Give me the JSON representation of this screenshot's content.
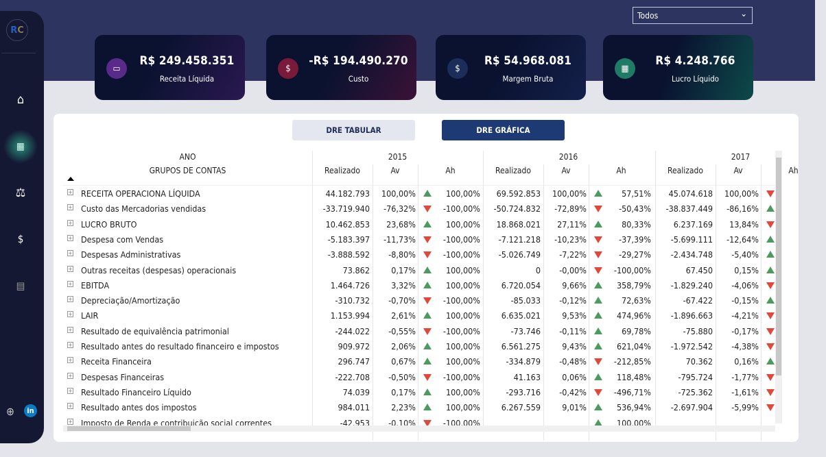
{
  "sidebar": {
    "logo": "RC",
    "items": [
      {
        "name": "home",
        "icon": "home-icon"
      },
      {
        "name": "dre-table",
        "icon": "grid-icon",
        "active": true
      },
      {
        "name": "balance",
        "icon": "scale-icon"
      },
      {
        "name": "cash",
        "icon": "hand-money-icon"
      },
      {
        "name": "calculator",
        "icon": "calculator-icon"
      }
    ],
    "footer": [
      "globe-icon",
      "linkedin-icon"
    ],
    "linkedin": "in"
  },
  "filter": {
    "value": "Todos"
  },
  "cards": [
    {
      "value": "R$ 249.458.351",
      "label": "Receita Líquida",
      "icon_color": "#5a2a8a"
    },
    {
      "value": "-R$ 194.490.270",
      "label": "Custo",
      "icon_color": "#7a1a3a"
    },
    {
      "value": "R$ 54.968.081",
      "label": "Margem Bruta",
      "icon_color": "#1c2d5a"
    },
    {
      "value": "R$ 4.248.766",
      "label": "Lucro Líquido",
      "icon_color": "#1f7a66"
    }
  ],
  "buttons": {
    "tabular": "DRE TABULAR",
    "grafica": "DRE GRÁFICA"
  },
  "table": {
    "header_ano": "ANO",
    "header_grupos": "GRUPOS DE CONTAS",
    "years": [
      "2015",
      "2016",
      "2017"
    ],
    "sub": [
      "Realizado",
      "Av",
      "Ah"
    ],
    "rows": [
      {
        "label": "RECEITA OPERACIONA LÍQUIDA",
        "y2015": [
          "44.182.793",
          "100,00%",
          "up",
          "100,00%"
        ],
        "y2016": [
          "69.592.853",
          "100,00%",
          "up",
          "57,51%"
        ],
        "y2017": [
          "45.074.618",
          "100,00%",
          "down",
          ""
        ]
      },
      {
        "label": "Custo das Mercadorias vendidas",
        "y2015": [
          "-33.719.940",
          "-76,32%",
          "down",
          "-100,00%"
        ],
        "y2016": [
          "-50.724.832",
          "-72,89%",
          "down",
          "-50,43%"
        ],
        "y2017": [
          "-38.837.449",
          "-86,16%",
          "up",
          ""
        ]
      },
      {
        "label": "LUCRO BRUTO",
        "y2015": [
          "10.462.853",
          "23,68%",
          "up",
          "100,00%"
        ],
        "y2016": [
          "18.868.021",
          "27,11%",
          "up",
          "80,33%"
        ],
        "y2017": [
          "6.237.169",
          "13,84%",
          "down",
          ""
        ]
      },
      {
        "label": "Despesa com Vendas",
        "y2015": [
          "-5.183.397",
          "-11,73%",
          "down",
          "-100,00%"
        ],
        "y2016": [
          "-7.121.218",
          "-10,23%",
          "down",
          "-37,39%"
        ],
        "y2017": [
          "-5.699.111",
          "-12,64%",
          "up",
          ""
        ]
      },
      {
        "label": "Despesas Administrativas",
        "y2015": [
          "-3.888.592",
          "-8,80%",
          "down",
          "-100,00%"
        ],
        "y2016": [
          "-5.026.749",
          "-7,22%",
          "down",
          "-29,27%"
        ],
        "y2017": [
          "-2.434.748",
          "-5,40%",
          "up",
          ""
        ]
      },
      {
        "label": "Outras receitas (despesas) operacionais",
        "y2015": [
          "73.862",
          "0,17%",
          "up",
          "100,00%"
        ],
        "y2016": [
          "0",
          "-0,00%",
          "down",
          "-100,00%"
        ],
        "y2017": [
          "67.450",
          "0,15%",
          "up",
          ""
        ]
      },
      {
        "label": "EBITDA",
        "y2015": [
          "1.464.726",
          "3,32%",
          "up",
          "100,00%"
        ],
        "y2016": [
          "6.720.054",
          "9,66%",
          "up",
          "358,79%"
        ],
        "y2017": [
          "-1.829.240",
          "-4,06%",
          "down",
          ""
        ]
      },
      {
        "label": "Depreciação/Amortização",
        "y2015": [
          "-310.732",
          "-0,70%",
          "down",
          "-100,00%"
        ],
        "y2016": [
          "-85.033",
          "-0,12%",
          "up",
          "72,63%"
        ],
        "y2017": [
          "-67.422",
          "-0,15%",
          "up",
          ""
        ]
      },
      {
        "label": "LAIR",
        "y2015": [
          "1.153.994",
          "2,61%",
          "up",
          "100,00%"
        ],
        "y2016": [
          "6.635.021",
          "9,53%",
          "up",
          "474,96%"
        ],
        "y2017": [
          "-1.896.663",
          "-4,21%",
          "down",
          ""
        ]
      },
      {
        "label": "Resultado de equivalência patrimonial",
        "y2015": [
          "-244.022",
          "-0,55%",
          "down",
          "-100,00%"
        ],
        "y2016": [
          "-73.746",
          "-0,11%",
          "up",
          "69,78%"
        ],
        "y2017": [
          "-75.880",
          "-0,17%",
          "down",
          ""
        ]
      },
      {
        "label": "Resultado antes do resultado financeiro e impostos",
        "y2015": [
          "909.972",
          "2,06%",
          "up",
          "100,00%"
        ],
        "y2016": [
          "6.561.275",
          "9,43%",
          "up",
          "621,04%"
        ],
        "y2017": [
          "-1.972.542",
          "-4,38%",
          "down",
          ""
        ]
      },
      {
        "label": "Receita Financeira",
        "y2015": [
          "296.747",
          "0,67%",
          "up",
          "100,00%"
        ],
        "y2016": [
          "-334.879",
          "-0,48%",
          "down",
          "-212,85%"
        ],
        "y2017": [
          "70.362",
          "0,16%",
          "up",
          ""
        ]
      },
      {
        "label": "Despesas Financeiras",
        "y2015": [
          "-222.708",
          "-0,50%",
          "down",
          "-100,00%"
        ],
        "y2016": [
          "41.163",
          "0,06%",
          "up",
          "118,48%"
        ],
        "y2017": [
          "-795.724",
          "-1,77%",
          "down",
          ""
        ]
      },
      {
        "label": "Resultado Financeiro Líquido",
        "y2015": [
          "74.039",
          "0,17%",
          "up",
          "100,00%"
        ],
        "y2016": [
          "-293.716",
          "-0,42%",
          "down",
          "-496,71%"
        ],
        "y2017": [
          "-725.362",
          "-1,61%",
          "down",
          ""
        ]
      },
      {
        "label": "Resultado antes dos impostos",
        "y2015": [
          "984.011",
          "2,23%",
          "up",
          "100,00%"
        ],
        "y2016": [
          "6.267.559",
          "9,01%",
          "up",
          "536,94%"
        ],
        "y2017": [
          "-2.697.904",
          "-5,99%",
          "down",
          ""
        ]
      },
      {
        "label": "Imposto de Renda e contribuição social correntes",
        "y2015": [
          "-42.953",
          "-0,10%",
          "down",
          "-100,00%"
        ],
        "y2016": [
          "",
          "",
          "up",
          "100,00%"
        ],
        "y2017": [
          "",
          "",
          "",
          ""
        ]
      }
    ]
  },
  "colors": {
    "up": "#4c9a5e",
    "down": "#e0483a",
    "accent": "#1e3a74"
  }
}
